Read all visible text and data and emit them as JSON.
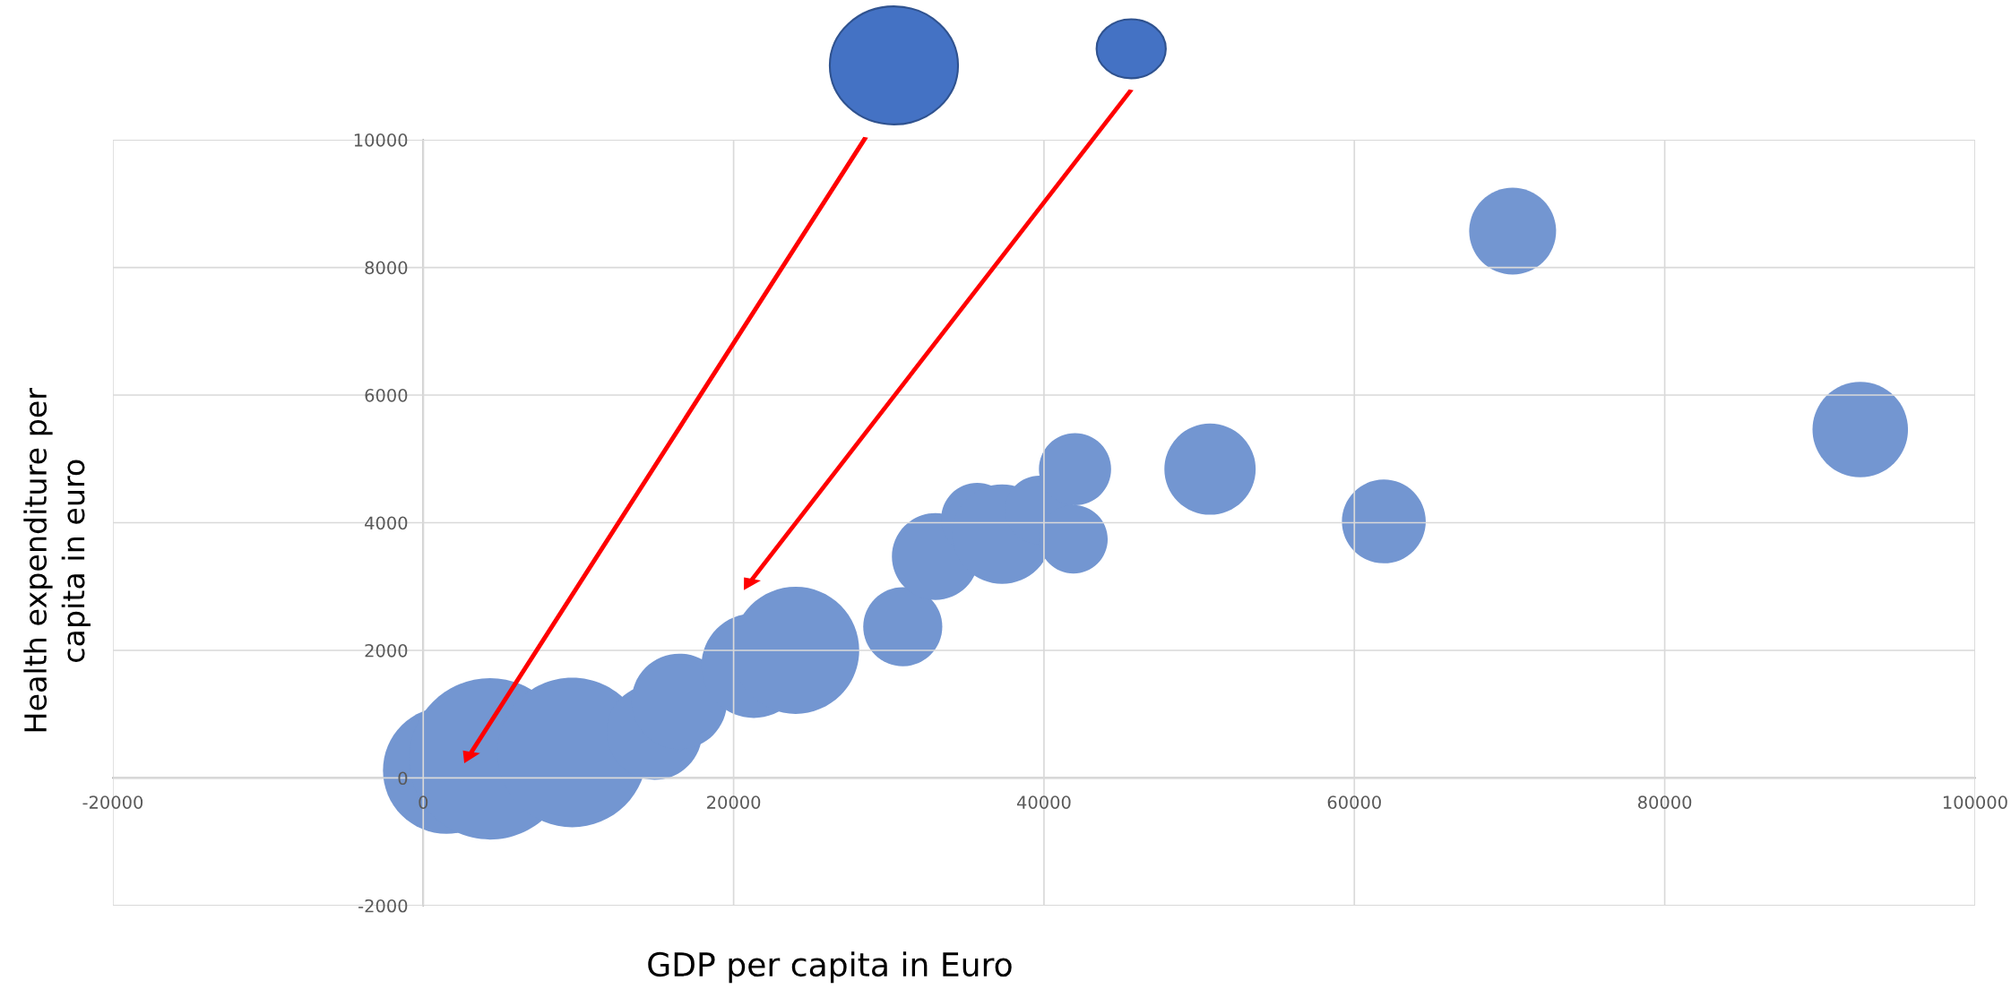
{
  "chart_data": {
    "type": "bubble",
    "xlabel": "GDP per capita in Euro",
    "ylabel": "Health expenditure per\ncapita in euro",
    "x": [
      1500,
      4300,
      9600,
      14900,
      16500,
      21300,
      24000,
      30900,
      33000,
      35700,
      37300,
      39700,
      41900,
      42000,
      50700,
      61900,
      70200,
      92600
    ],
    "values": [
      120,
      300,
      400,
      720,
      1200,
      1760,
      2000,
      2370,
      3470,
      4060,
      3820,
      4200,
      3740,
      4840,
      4840,
      4020,
      8570,
      5460
    ],
    "sizes": [
      0.62,
      1,
      0.86,
      0.35,
      0.35,
      0.42,
      0.62,
      0.24,
      0.29,
      0.2,
      0.38,
      0.18,
      0.18,
      0.2,
      0.32,
      0.27,
      0.29,
      0.35
    ],
    "color": "#7396d1",
    "xlim": [
      -20000,
      100000
    ],
    "xticks": [
      -20000,
      0,
      20000,
      40000,
      60000,
      80000,
      100000
    ],
    "ylim": [
      -2000,
      10000
    ],
    "yticks": [
      -2000,
      0,
      2000,
      4000,
      6000,
      8000,
      10000
    ],
    "grid": true,
    "legend": false
  }
}
